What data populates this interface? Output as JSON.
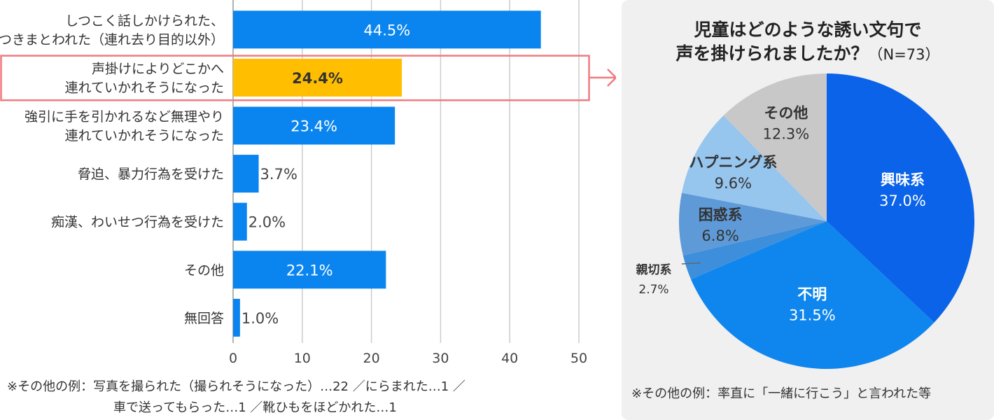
{
  "chart_data": [
    {
      "type": "bar",
      "orientation": "horizontal",
      "categories": [
        [
          "しつこく話しかけられた、",
          "つきまとわれた（連れ去り目的以外）"
        ],
        [
          "声掛けによりどこかへ",
          "連れていかれそうになった"
        ],
        [
          "強引に手を引かれるなど無理やり",
          "連れていかれそうになった"
        ],
        [
          "脅迫、暴力行為を受けた"
        ],
        [
          "痴漢、わいせつ行為を受けた"
        ],
        [
          "その他"
        ],
        [
          "無回答"
        ]
      ],
      "values": [
        44.5,
        24.4,
        23.4,
        3.7,
        2.0,
        22.1,
        1.0
      ],
      "value_labels": [
        "44.5%",
        "24.4%",
        "23.4%",
        "3.7%",
        "2.0%",
        "22.1%",
        "1.0%"
      ],
      "highlight_index": 1,
      "xlim": [
        0,
        50
      ],
      "xticks": [
        0,
        10,
        20,
        30,
        40,
        50
      ],
      "xtick_labels": [
        "0",
        "10",
        "20",
        "30",
        "40",
        "50"
      ],
      "grid": true,
      "colors": {
        "bar": "#0a85f0",
        "highlight": "#ffbf00",
        "highlight_box": "#f07a80",
        "grid": "#cccccc"
      }
    },
    {
      "type": "pie",
      "title_lines": [
        "児童はどのような誘い文句で",
        "声を掛けられましたか？"
      ],
      "title_suffix": "（N=73）",
      "slices": [
        {
          "label": "興味系",
          "value": 37.0,
          "pct": "37.0%",
          "color": "#0a63e8",
          "text_color": "#ffffff"
        },
        {
          "label": "不明",
          "value": 31.5,
          "pct": "31.5%",
          "color": "#0f86ee",
          "text_color": "#ffffff"
        },
        {
          "label": "親切系",
          "value": 2.7,
          "pct": "2.7%",
          "color": "#3d8fdc",
          "text_color": "#333333"
        },
        {
          "label": "困惑系",
          "value": 6.8,
          "pct": "6.8%",
          "color": "#5f9ad8",
          "text_color": "#333333"
        },
        {
          "label": "ハプニング系",
          "value": 9.6,
          "pct": "9.6%",
          "color": "#96c5ee",
          "text_color": "#333333"
        },
        {
          "label": "その他",
          "value": 12.3,
          "pct": "12.3%",
          "color": "#c8c8c8",
          "text_color": "#333333"
        }
      ]
    }
  ],
  "notes": {
    "bar_note_line1": "※その他の例：写真を撮られた（撮られそうになった）…22 ／にらまれた…1 ／",
    "bar_note_line2": "車で送ってもらった…1 ／靴ひもをほどかれた…1",
    "pie_note": "※その他の例：率直に「一緒に行こう」と言われた等"
  }
}
